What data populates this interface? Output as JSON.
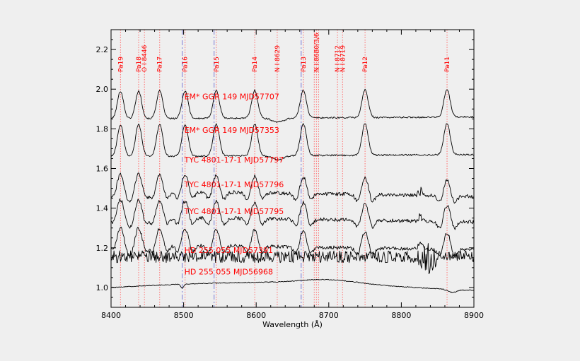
{
  "chart_data": {
    "type": "line",
    "xlabel": "Wavelength (Å)",
    "ylabel": "",
    "xlim": [
      8400,
      8900
    ],
    "ylim": [
      0.9,
      2.3
    ],
    "x_ticks": [
      8400,
      8500,
      8600,
      8700,
      8800,
      8900
    ],
    "y_ticks": [
      1.0,
      1.2,
      1.4,
      1.6,
      1.8,
      2.0,
      2.2
    ],
    "y_tick_labels": [
      "1.0",
      "1.2",
      "1.4",
      "1.6",
      "1.8",
      "2.0",
      "2.2"
    ],
    "line_markers": [
      {
        "label": "Pa19",
        "x": 8413
      },
      {
        "label": "Pa18",
        "x": 8438
      },
      {
        "label": "O I 8446",
        "x": 8446
      },
      {
        "label": "Pa17",
        "x": 8467
      },
      {
        "label": "Pa16",
        "x": 8502
      },
      {
        "label": "Pa15",
        "x": 8545
      },
      {
        "label": "Pa14",
        "x": 8598
      },
      {
        "label": "N I 8629",
        "x": 8629
      },
      {
        "label": "Pa13",
        "x": 8665
      },
      {
        "label": "N I 8680/3/6",
        "x": 8683
      },
      {
        "label": "N I 8712",
        "x": 8712
      },
      {
        "label": "N I 8719",
        "x": 8719
      },
      {
        "label": "Pa12",
        "x": 8750
      },
      {
        "label": "Pa11",
        "x": 8863
      }
    ],
    "dotted_lines_x": [
      8413,
      8438,
      8446,
      8467,
      8502,
      8545,
      8598,
      8629,
      8665,
      8680,
      8683,
      8686,
      8712,
      8719,
      8750,
      8863
    ],
    "dashed_lines_x": [
      8498,
      8542,
      8662
    ],
    "emission_peaks_x": [
      8413,
      8438,
      8467,
      8502,
      8545,
      8598,
      8665,
      8750,
      8863
    ],
    "series": [
      {
        "name": "EM* GGR 149 MJD57707",
        "offset": 1.85,
        "kind": "emission",
        "amp": 0.14,
        "noise": 0.004,
        "label_x": 8500,
        "label_y": 1.95
      },
      {
        "name": "EM* GGR 149 MJD57353",
        "offset": 1.66,
        "kind": "emission",
        "amp": 0.16,
        "noise": 0.004,
        "label_x": 8500,
        "label_y": 1.78
      },
      {
        "name": "TYC 4801-17-1 MJD57797",
        "offset": 1.49,
        "kind": "broad",
        "amp": 0.09,
        "noise": 0.009,
        "label_x": 8500,
        "label_y": 1.63
      },
      {
        "name": "TYC 4801-17-1 MJD57796",
        "offset": 1.36,
        "kind": "broad",
        "amp": 0.09,
        "noise": 0.009,
        "label_x": 8500,
        "label_y": 1.505
      },
      {
        "name": "TYC 4801-17-1 MJD57795",
        "offset": 1.22,
        "kind": "broad",
        "amp": 0.09,
        "noise": 0.009,
        "label_x": 8500,
        "label_y": 1.37
      },
      {
        "name": "HD 255 055 MJD57391",
        "offset": 1.155,
        "kind": "noisy",
        "amp": 0.0,
        "noise": 0.03,
        "label_x": 8500,
        "label_y": 1.175
      },
      {
        "name": "HD 255 055 MJD56968",
        "offset": 1.0,
        "kind": "smooth",
        "amp": 0.0,
        "noise": 0.002,
        "label_x": 8500,
        "label_y": 1.065
      }
    ]
  },
  "colors": {
    "background": "#efefef",
    "axis": "#000000",
    "spectra": "#000000",
    "annotation": "#ff0000",
    "dotted_line": "#ff6f6f",
    "dashed_line": "#7b7bd6"
  }
}
